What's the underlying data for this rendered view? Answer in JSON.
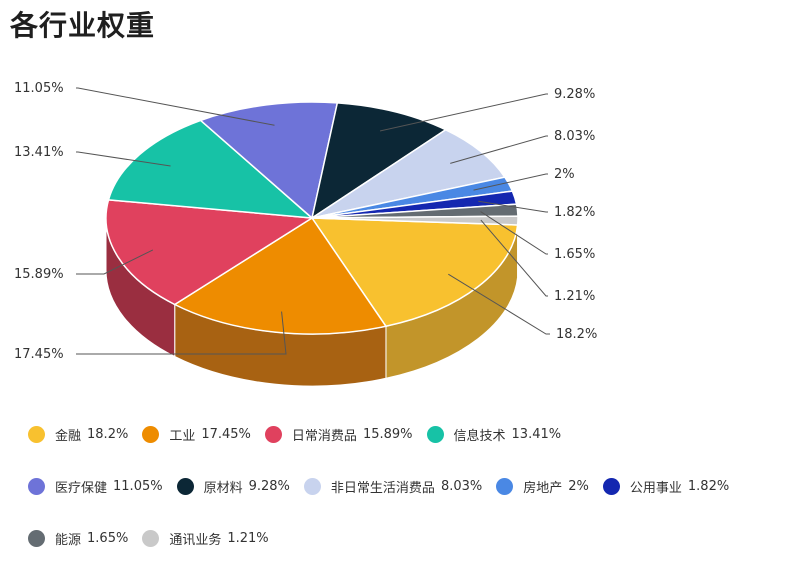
{
  "title": "各行业权重",
  "chart_data": {
    "type": "pie",
    "title": "各行业权重",
    "slices": [
      {
        "name": "金融",
        "value": 18.2,
        "label": "18.2%",
        "color": "#F8C12F",
        "side": "#C2952A"
      },
      {
        "name": "工业",
        "value": 17.45,
        "label": "17.45%",
        "color": "#EE8C00",
        "side": "#A86212"
      },
      {
        "name": "日常消费品",
        "value": 15.89,
        "label": "15.89%",
        "color": "#E0415E",
        "side": "#9A2E40"
      },
      {
        "name": "信息技术",
        "value": 13.41,
        "label": "13.41%",
        "color": "#17C2A6",
        "side": "#0F8A76"
      },
      {
        "name": "医疗保健",
        "value": 11.05,
        "label": "11.05%",
        "color": "#6E73D8",
        "side": "#4D5198"
      },
      {
        "name": "原材料",
        "value": 9.28,
        "label": "9.28%",
        "color": "#0C2736",
        "side": "#061620"
      },
      {
        "name": "非日常生活消费品",
        "value": 8.03,
        "label": "8.03%",
        "color": "#C8D3EE",
        "side": "#98A2BA"
      },
      {
        "name": "房地产",
        "value": 2,
        "label": "2%",
        "color": "#4A88E4",
        "side": "#325FA0"
      },
      {
        "name": "公用事业",
        "value": 1.82,
        "label": "1.82%",
        "color": "#1427B0",
        "side": "#0D1A7A"
      },
      {
        "name": "能源",
        "value": 1.65,
        "label": "1.65%",
        "color": "#646C72",
        "side": "#454B50"
      },
      {
        "name": "通讯业务",
        "value": 1.21,
        "label": "1.21%",
        "color": "#C9C9C9",
        "side": "#999999"
      }
    ],
    "legend_position": "bottom"
  }
}
